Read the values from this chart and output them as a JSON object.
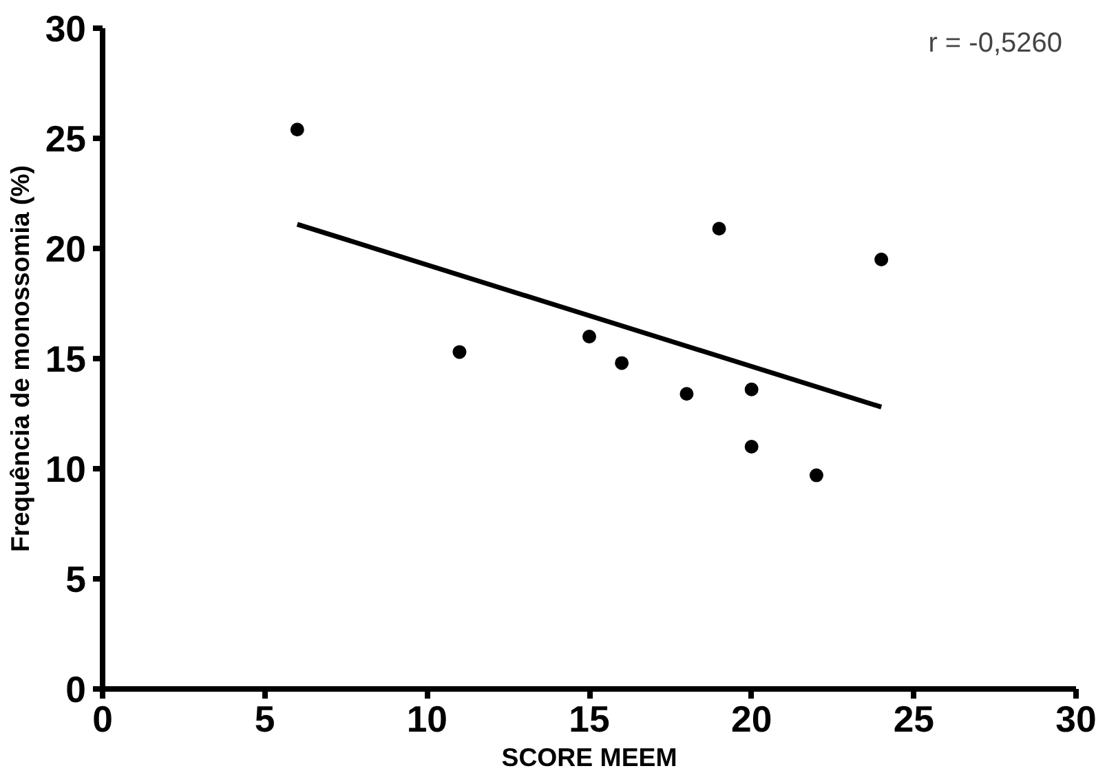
{
  "chart_data": {
    "type": "scatter",
    "xlabel": "SCORE MEEM",
    "ylabel": "Frequência de monossomia (%)",
    "annotations": [
      "r = -0,5260"
    ],
    "xlim": [
      0,
      30
    ],
    "ylim": [
      0,
      30
    ],
    "xticks": [
      0,
      5,
      10,
      15,
      20,
      25,
      30
    ],
    "yticks": [
      0,
      5,
      10,
      15,
      20,
      25,
      30
    ],
    "grid": false,
    "marker": "circle",
    "series": [
      {
        "color": "#000000",
        "x": [
          6,
          11,
          15,
          16,
          18,
          19,
          20,
          20,
          22,
          24
        ],
        "values": [
          25.4,
          15.3,
          16.0,
          14.8,
          13.4,
          20.9,
          13.6,
          11.0,
          9.7,
          19.5
        ]
      },
      {
        "type": "line",
        "color": "#000000",
        "line_style": "solid",
        "marker": "none",
        "x": [
          6,
          24
        ],
        "values": [
          21.1,
          12.8
        ]
      }
    ]
  }
}
